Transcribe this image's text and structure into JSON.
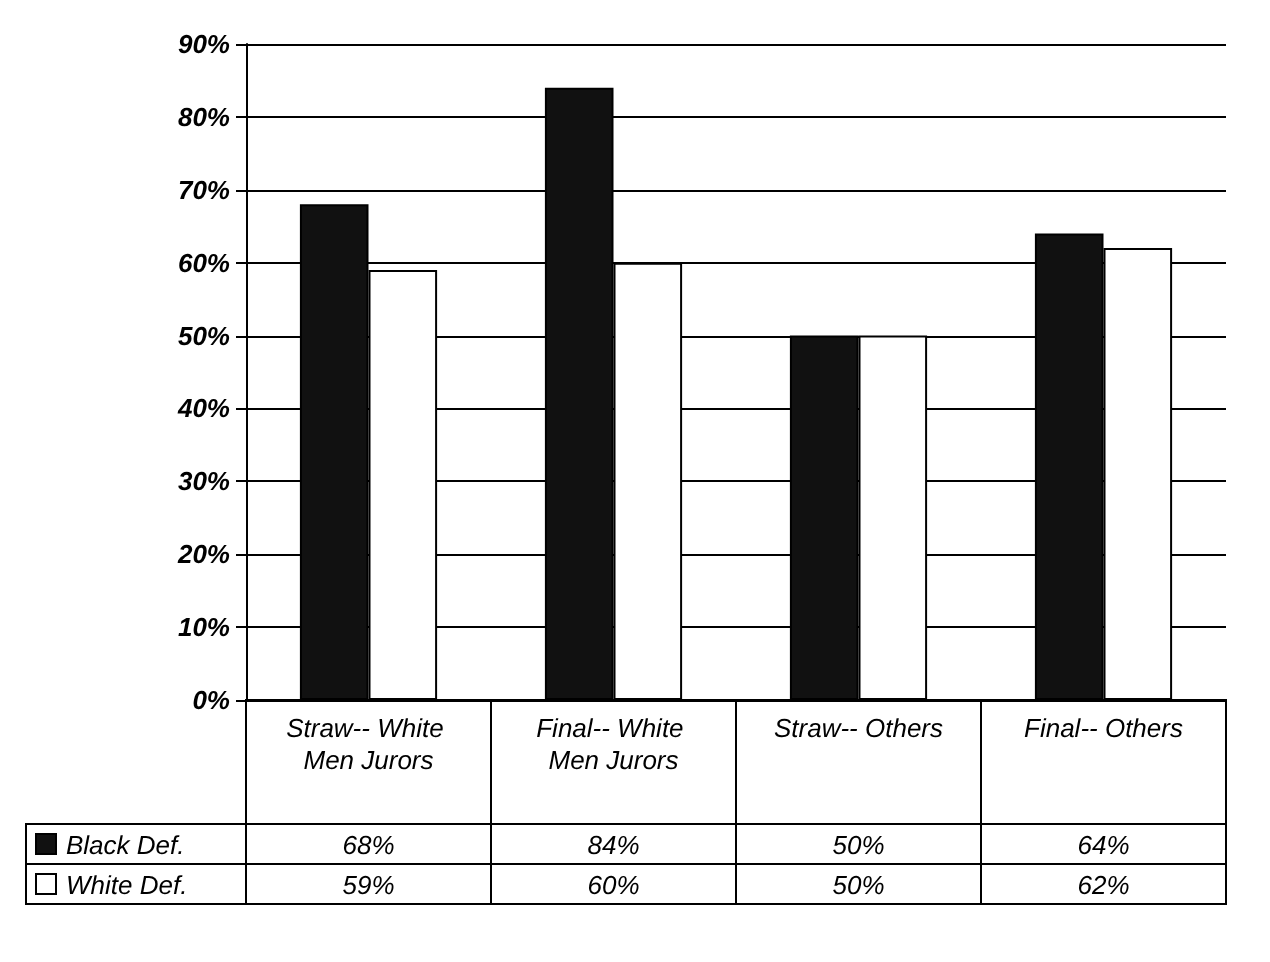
{
  "chart_data": {
    "type": "bar",
    "categories": [
      "Straw-- White Men Jurors",
      "Final-- White Men Jurors",
      "Straw-- Others",
      "Final-- Others"
    ],
    "series": [
      {
        "name": "Black Def.",
        "color": "#111111",
        "values": [
          68,
          84,
          50,
          64
        ]
      },
      {
        "name": "White Def.",
        "color": "#ffffff",
        "values": [
          59,
          60,
          50,
          62
        ]
      }
    ],
    "ylim": [
      0,
      90
    ],
    "yticks": [
      {
        "value": 0,
        "label": "0%"
      },
      {
        "value": 10,
        "label": "10%"
      },
      {
        "value": 20,
        "label": "20%"
      },
      {
        "value": 30,
        "label": "30%"
      },
      {
        "value": 40,
        "label": "40%"
      },
      {
        "value": 50,
        "label": "50%"
      },
      {
        "value": 60,
        "label": "60%"
      },
      {
        "value": 70,
        "label": "70%"
      },
      {
        "value": 80,
        "label": "80%"
      },
      {
        "value": 90,
        "label": "90%"
      }
    ],
    "value_labels": [
      [
        "68%",
        "84%",
        "50%",
        "64%"
      ],
      [
        "59%",
        "60%",
        "50%",
        "62%"
      ]
    ],
    "grid": "y",
    "legend": "bottom left"
  }
}
